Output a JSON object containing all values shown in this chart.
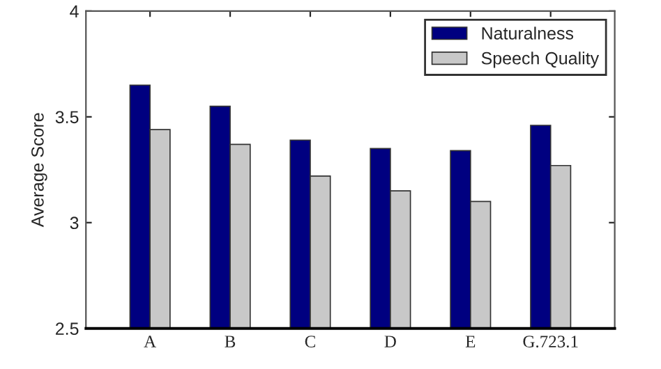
{
  "chart_data": {
    "type": "bar",
    "ylabel": "Average Score",
    "categories": [
      "A",
      "B",
      "C",
      "D",
      "E",
      "G.723.1"
    ],
    "series": [
      {
        "name": "Naturalness",
        "color": "#000080",
        "values": [
          3.65,
          3.55,
          3.39,
          3.35,
          3.34,
          3.46
        ]
      },
      {
        "name": "Speech Quality",
        "color": "#c8c8c8",
        "values": [
          3.44,
          3.37,
          3.22,
          3.15,
          3.1,
          3.27
        ]
      }
    ],
    "ylim": [
      2.5,
      4
    ],
    "yticks": [
      2.5,
      3,
      3.5,
      4
    ],
    "grid": false,
    "legend": "top right"
  }
}
